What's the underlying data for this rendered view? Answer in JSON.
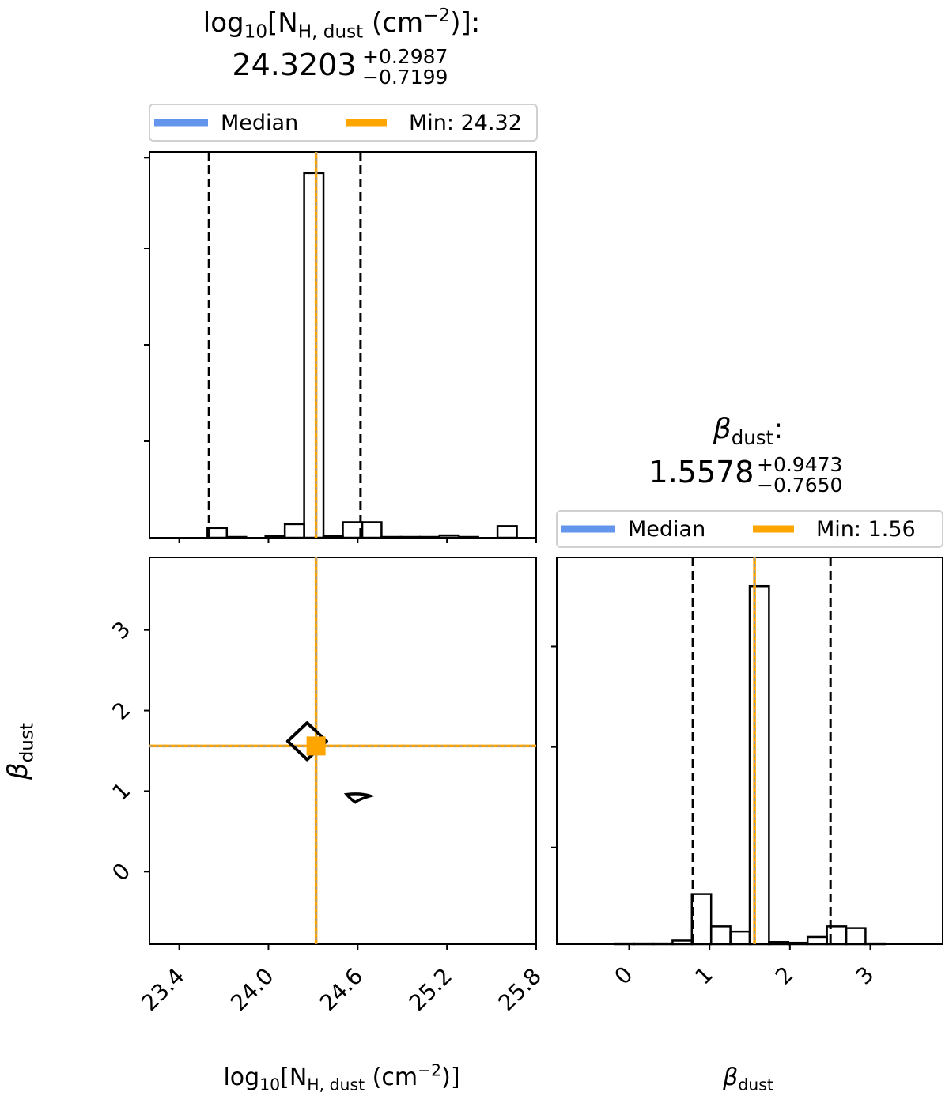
{
  "colors": {
    "median": "#6495ED",
    "min": "#FFA500",
    "hist": "#000000",
    "quantile": "#000000"
  },
  "chart_data": {
    "type": "corner",
    "parameters": [
      {
        "key": "nh",
        "axis_label": "log10[NH, dust (cm−2)]",
        "label_base": "log",
        "label_sub1": "10",
        "label_mid": "[N",
        "label_sub2": "H, dust",
        "label_mid2": " (cm",
        "label_sup": "−2",
        "label_end": ")]",
        "title_suffix": ":",
        "value": "24.3203",
        "err_plus": "+0.2987",
        "err_minus": "−0.7199",
        "range": [
          23.2,
          25.8
        ],
        "ticks": [
          "23.4",
          "24.0",
          "24.6",
          "25.2",
          "25.8"
        ],
        "tick_values": [
          23.4,
          24.0,
          24.6,
          25.2,
          25.8
        ],
        "median": 24.3203,
        "min": 24.32,
        "q16": 23.6,
        "q84": 24.619,
        "legend": {
          "median_label": "Median",
          "min_label": "Min: 24.32"
        },
        "hist": {
          "bins": [
            23.2,
            23.33,
            23.46,
            23.59,
            23.72,
            23.85,
            23.98,
            24.11,
            24.24,
            24.37,
            24.5,
            24.63,
            24.76,
            24.89,
            25.02,
            25.15,
            25.28,
            25.41,
            25.54,
            25.67,
            25.8
          ],
          "counts": [
            0,
            0,
            0,
            0.025,
            0.002,
            0,
            0.005,
            0.035,
            0.945,
            0.005,
            0.04,
            0.04,
            0.002,
            0.002,
            0.002,
            0.006,
            0.002,
            0,
            0.03,
            0
          ],
          "ymax": 1.0
        }
      },
      {
        "key": "beta",
        "axis_label": "βdust",
        "label_base": "β",
        "label_sub": "dust",
        "title_suffix": ":",
        "value": "1.5578",
        "err_plus": "+0.9473",
        "err_minus": "−0.7650",
        "range": [
          -0.9,
          3.9
        ],
        "ticks": [
          "0",
          "1",
          "2",
          "3"
        ],
        "tick_values": [
          0,
          1,
          2,
          3
        ],
        "median": 1.5578,
        "min": 1.56,
        "q16": 0.7928,
        "q84": 2.5051,
        "legend": {
          "median_label": "Median",
          "min_label": "Min: 1.56"
        },
        "hist": {
          "bins": [
            -0.9,
            -0.66,
            -0.42,
            -0.18,
            0.06,
            0.3,
            0.54,
            0.78,
            1.02,
            1.26,
            1.5,
            1.74,
            1.98,
            2.22,
            2.46,
            2.7,
            2.94,
            3.18,
            3.42,
            3.66,
            3.9
          ],
          "counts": [
            0,
            0,
            0,
            0.002,
            0.002,
            0.002,
            0.01,
            0.14,
            0.05,
            0.035,
            1.0,
            0.006,
            0.004,
            0.02,
            0.05,
            0.045,
            0.002,
            0,
            0,
            0
          ],
          "ymax": 1.08
        }
      }
    ],
    "joint": {
      "contours": [
        {
          "x": 24.26,
          "y": 1.62,
          "rx": 0.09,
          "ry": 0.19
        },
        {
          "x": 24.6,
          "y": 0.92,
          "rx": 0.04,
          "ry": 0.05
        }
      ]
    }
  }
}
